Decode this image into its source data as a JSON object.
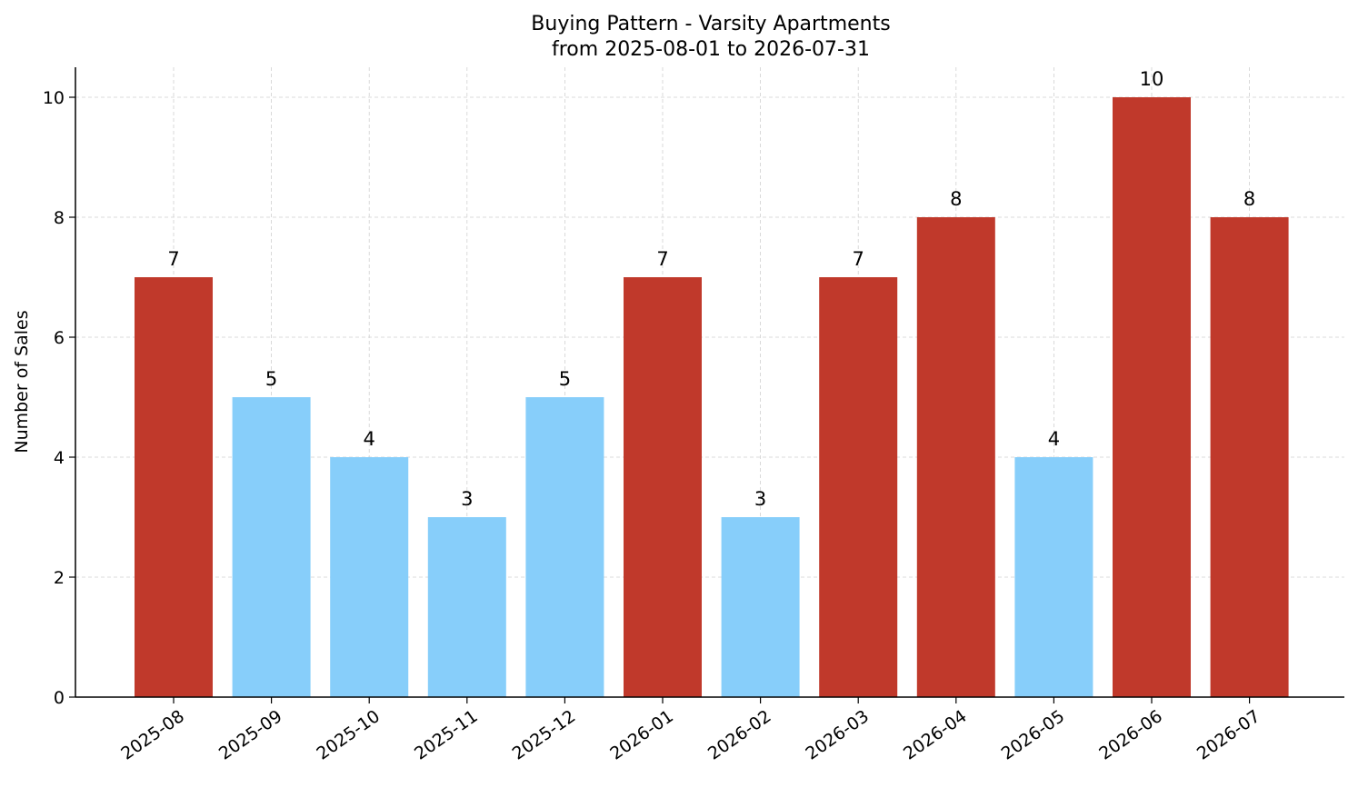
{
  "chart_data": {
    "type": "bar",
    "title": "Buying Pattern - Varsity Apartments",
    "subtitle": "from 2025-08-01 to 2026-07-31",
    "xlabel": "",
    "ylabel": "Number of Sales",
    "categories": [
      "2025-08",
      "2025-09",
      "2025-10",
      "2025-11",
      "2025-12",
      "2026-01",
      "2026-02",
      "2026-03",
      "2026-04",
      "2026-05",
      "2026-06",
      "2026-07"
    ],
    "values": [
      7,
      5,
      4,
      3,
      5,
      7,
      3,
      7,
      8,
      4,
      10,
      8
    ],
    "bar_colors": [
      "#c0392b",
      "#87cefa",
      "#87cefa",
      "#87cefa",
      "#87cefa",
      "#c0392b",
      "#87cefa",
      "#c0392b",
      "#c0392b",
      "#87cefa",
      "#c0392b",
      "#c0392b"
    ],
    "ylim": [
      0,
      10.5
    ],
    "yticks": [
      0,
      2,
      4,
      6,
      8,
      10
    ],
    "grid": true,
    "data_labels": true,
    "x_tick_rotation": 35
  },
  "colors": {
    "high": "#c0392b",
    "low": "#87cefa",
    "grid": "#d0d0d0",
    "axis": "#000000"
  }
}
